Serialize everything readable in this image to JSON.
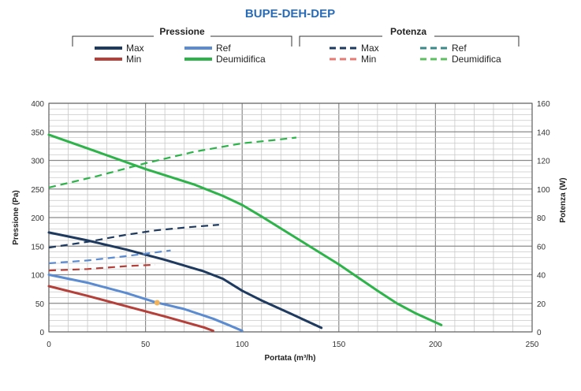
{
  "chart_data": {
    "type": "line",
    "title": "BUPE-DEH-DEP",
    "xlabel": "Portata (m³/h)",
    "ylabel": "Pressione (Pa)",
    "y2label": "Potenza (W)",
    "xlim": [
      0,
      250
    ],
    "ylim": [
      0,
      400
    ],
    "y2lim": [
      0,
      160
    ],
    "x_ticks": [
      0,
      50,
      100,
      150,
      200,
      250
    ],
    "y_ticks": [
      0,
      50,
      100,
      150,
      200,
      250,
      300,
      350,
      400
    ],
    "y2_ticks": [
      0,
      20,
      40,
      60,
      80,
      100,
      120,
      140,
      160
    ],
    "grid": true,
    "legend_groups": [
      {
        "label": "Pressione",
        "entries": [
          "Max",
          "Ref",
          "Min",
          "Deumidifica"
        ]
      },
      {
        "label": "Potenza",
        "entries": [
          "Max",
          "Ref",
          "Min",
          "Deumidifica"
        ]
      }
    ],
    "colors": {
      "Max": "#1f3a5f",
      "Ref": "#5b8bd0",
      "Min": "#b5403a",
      "Deumidifica": "#2db34a"
    },
    "series": [
      {
        "group": "Pressione",
        "name": "Max",
        "axis": "left",
        "style": "solid",
        "x": [
          0,
          20,
          40,
          60,
          80,
          90,
          100,
          110,
          125,
          141
        ],
        "y": [
          174,
          160,
          144,
          126,
          106,
          93,
          72,
          55,
          32,
          7
        ]
      },
      {
        "group": "Pressione",
        "name": "Ref",
        "axis": "left",
        "style": "solid",
        "x": [
          0,
          20,
          40,
          55,
          70,
          85,
          93,
          100
        ],
        "y": [
          100,
          86,
          68,
          52,
          40,
          23,
          12,
          2
        ]
      },
      {
        "group": "Pressione",
        "name": "Min",
        "axis": "left",
        "style": "solid",
        "x": [
          0,
          20,
          40,
          60,
          80,
          85
        ],
        "y": [
          80,
          63,
          45,
          27,
          8,
          2
        ]
      },
      {
        "group": "Pressione",
        "name": "Deumidifica",
        "axis": "left",
        "style": "solid",
        "x": [
          0,
          25,
          50,
          75,
          90,
          100,
          110,
          130,
          150,
          170,
          180,
          190,
          203
        ],
        "y": [
          345,
          315,
          285,
          258,
          238,
          222,
          202,
          160,
          118,
          72,
          50,
          32,
          12
        ]
      },
      {
        "group": "Potenza",
        "name": "Max",
        "axis": "right",
        "style": "dashed",
        "x": [
          0,
          20,
          40,
          55,
          70,
          88
        ],
        "y": [
          59,
          63,
          68,
          71,
          73,
          75
        ]
      },
      {
        "group": "Potenza",
        "name": "Ref",
        "axis": "right",
        "style": "dashed",
        "x": [
          0,
          20,
          40,
          63
        ],
        "y": [
          48,
          50,
          53,
          57
        ]
      },
      {
        "group": "Potenza",
        "name": "Min",
        "axis": "right",
        "style": "dashed",
        "x": [
          0,
          20,
          40,
          55
        ],
        "y": [
          43,
          44,
          46,
          47
        ]
      },
      {
        "group": "Potenza",
        "name": "Deumidifica",
        "axis": "right",
        "style": "dashed",
        "x": [
          0,
          25,
          50,
          75,
          100,
          115,
          128
        ],
        "y": [
          101,
          109,
          118,
          126,
          132,
          134,
          136
        ]
      }
    ],
    "markers": [
      {
        "series": "Ref",
        "axis": "left",
        "x": 56,
        "y": 51,
        "color": "#f0b25a"
      }
    ]
  }
}
